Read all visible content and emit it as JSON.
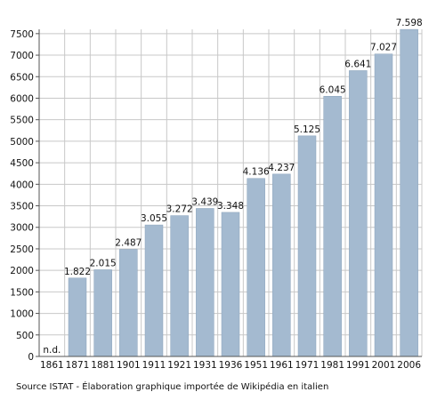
{
  "chart_data": {
    "type": "bar",
    "categories": [
      "1861",
      "1871",
      "1881",
      "1901",
      "1911",
      "1921",
      "1931",
      "1936",
      "1951",
      "1961",
      "1971",
      "1981",
      "1991",
      "2001",
      "2006"
    ],
    "values": [
      null,
      1822,
      2015,
      2487,
      3055,
      3272,
      3439,
      3348,
      4136,
      4237,
      5125,
      6045,
      6641,
      7027,
      7598
    ],
    "data_labels": [
      "n.d.",
      "1.822",
      "2.015",
      "2.487",
      "3.055",
      "3.272",
      "3.439",
      "3.348",
      "4.136",
      "4.237",
      "5.125",
      "6.045",
      "6.641",
      "7.027",
      "7.598"
    ],
    "y_ticks": [
      "0",
      "500",
      "1000",
      "1500",
      "2000",
      "2500",
      "3000",
      "3500",
      "4000",
      "4500",
      "5000",
      "5500",
      "6000",
      "6500",
      "7000",
      "7500"
    ],
    "ylim": [
      0,
      7600
    ],
    "grid": true,
    "title": "",
    "xlabel": "",
    "ylabel": "",
    "bar_color": "#a4bad0",
    "bar_stroke": "#8aa3bb",
    "grid_color": "#c8c8c8",
    "axis_color": "#555555"
  },
  "source_note": "Source ISTAT - Élaboration graphique importée de Wikipédia en italien"
}
